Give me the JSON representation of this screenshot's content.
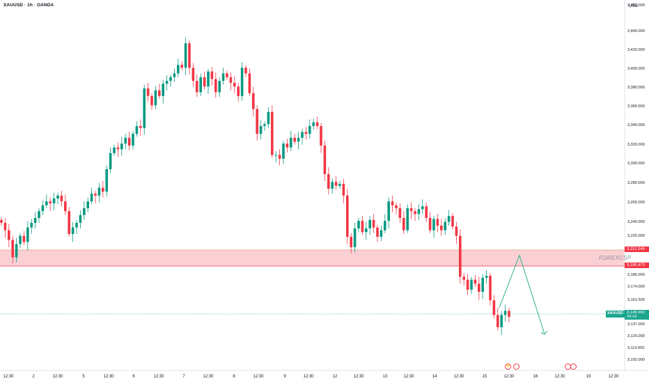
{
  "header": {
    "title": "XAUUSD · 1h · OANDA",
    "currency": "USD"
  },
  "watermark": "FOREXCSP",
  "colors": {
    "up": "#089981",
    "down": "#f23645",
    "zone_fill": "#f9c8cd",
    "zone_line": "#f23645",
    "arrow": "#2eb37f",
    "current_line": "#1aa58e"
  },
  "chart_data": {
    "type": "candlestick",
    "y_axis_labels": [
      "3,460.000",
      "3,440.000",
      "3,420.000",
      "3,400.000",
      "3,380.000",
      "3,360.000",
      "3,340.000",
      "3,320.000",
      "3,300.000",
      "3,280.000",
      "3,260.000",
      "3,240.000",
      "3,225.000",
      "3,186.000",
      "3,174.000",
      "3,161.500",
      "3,137.000",
      "3,125.000",
      "3,113.000",
      "3,102.000"
    ],
    "y_axis_values": [
      3460,
      3440,
      3420,
      3400,
      3380,
      3360,
      3340,
      3320,
      3300,
      3280,
      3260,
      3240,
      3225,
      3186,
      3174,
      3161.5,
      3137,
      3125,
      3113,
      3102
    ],
    "x_axis_labels": [
      "12:30",
      "2",
      "12:30",
      "5",
      "12:30",
      "6",
      "12:30",
      "7",
      "12:30",
      "8",
      "12:30",
      "9",
      "12:30",
      "12",
      "12:30",
      "13",
      "12:30",
      "14",
      "12:30",
      "15",
      "12:30",
      "16",
      "12:30",
      "19",
      "12:30"
    ],
    "zone": {
      "top": 3212.249,
      "bottom": 3196.473,
      "top_label": "3,212.249",
      "bottom_label": "3,196.473"
    },
    "current": {
      "symbol": "XAUUSD",
      "price": 3148.96,
      "price_label": "3,148.960",
      "countdown": "43:16"
    },
    "projection": [
      {
        "label": "start",
        "price": 3155
      },
      {
        "label": "peak",
        "price": 3207
      },
      {
        "label": "end",
        "price": 3128
      }
    ],
    "closes": [
      3240,
      3232,
      3222,
      3205,
      3218,
      3226,
      3220,
      3235,
      3240,
      3245,
      3252,
      3258,
      3262,
      3260,
      3265,
      3268,
      3262,
      3252,
      3228,
      3235,
      3240,
      3248,
      3255,
      3262,
      3270,
      3268,
      3276,
      3272,
      3295,
      3312,
      3318,
      3316,
      3322,
      3328,
      3320,
      3332,
      3340,
      3338,
      3380,
      3372,
      3362,
      3378,
      3372,
      3385,
      3388,
      3392,
      3396,
      3405,
      3402,
      3428,
      3402,
      3388,
      3376,
      3392,
      3382,
      3398,
      3390,
      3376,
      3388,
      3396,
      3392,
      3386,
      3382,
      3372,
      3402,
      3396,
      3375,
      3358,
      3332,
      3340,
      3342,
      3355,
      3310,
      3310,
      3306,
      3322,
      3318,
      3328,
      3324,
      3328,
      3334,
      3332,
      3340,
      3344,
      3340,
      3320,
      3290,
      3275,
      3282,
      3278,
      3280,
      3268,
      3225,
      3215,
      3234,
      3242,
      3230,
      3234,
      3243,
      3235,
      3225,
      3232,
      3242,
      3262,
      3258,
      3255,
      3245,
      3232,
      3255,
      3252,
      3249,
      3254,
      3257,
      3245,
      3232,
      3244,
      3237,
      3232,
      3241,
      3247,
      3236,
      3226,
      3185,
      3182,
      3172,
      3182,
      3178,
      3170,
      3184,
      3186,
      3162,
      3148,
      3135,
      3148,
      3152,
      3146
    ]
  }
}
